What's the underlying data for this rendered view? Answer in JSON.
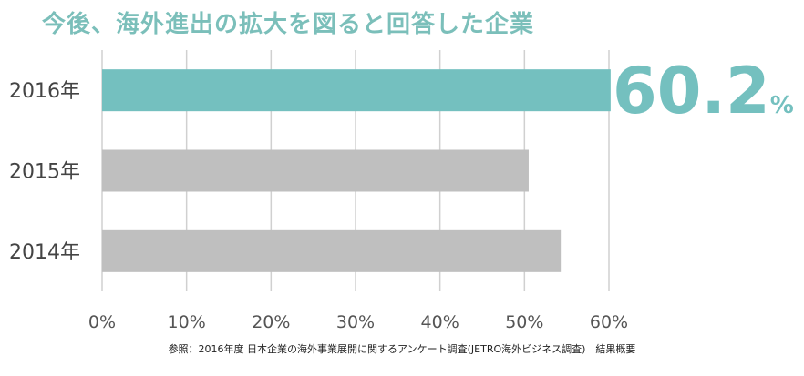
{
  "title": "今後、海外進出の拡大を図ると回答した企業",
  "highlight": {
    "value": "60.2",
    "unit": "%"
  },
  "source_note": "参照：2016年度 日本企業の海外事業展開に関するアンケート調査(JETRO海外ビジネス調査)　結果概要",
  "colors": {
    "highlight": "#74c0bf",
    "other": "#bfbfbf",
    "grid": "#d0d0d0",
    "title": "#7bbfba"
  },
  "chart_data": {
    "type": "bar",
    "orientation": "horizontal",
    "categories": [
      "2016年",
      "2015年",
      "2014年"
    ],
    "values": [
      60.2,
      50.5,
      54.3
    ],
    "xlim": [
      0,
      60
    ],
    "xticks": [
      "0%",
      "10%",
      "20%",
      "30%",
      "40%",
      "50%",
      "60%"
    ],
    "grid": true,
    "legend": "none"
  }
}
